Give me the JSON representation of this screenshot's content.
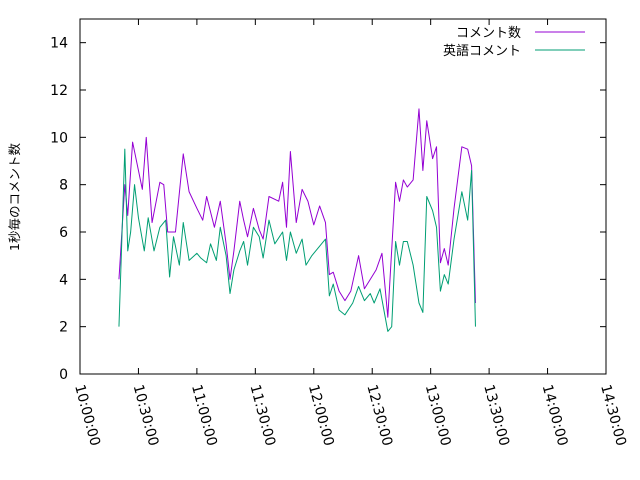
{
  "chart_data": {
    "type": "line",
    "title": "",
    "xlabel": "",
    "ylabel": "1秒毎のコメント数",
    "xlim": [
      "10:00:00",
      "14:30:00"
    ],
    "ylim": [
      0,
      15
    ],
    "x_ticks": [
      "10:00:00",
      "10:30:00",
      "11:00:00",
      "11:30:00",
      "12:00:00",
      "12:30:00",
      "13:00:00",
      "13:30:00",
      "14:00:00",
      "14:30:00"
    ],
    "y_ticks": [
      "0",
      "2",
      "4",
      "6",
      "8",
      "10",
      "12",
      "14"
    ],
    "grid": false,
    "legend_position": "top-right",
    "series": [
      {
        "name": "コメント数",
        "color": "#9400d3",
        "points": [
          [
            "10:20:00",
            4.0
          ],
          [
            "10:23:00",
            8.0
          ],
          [
            "10:24:30",
            6.7
          ],
          [
            "10:27:00",
            9.8
          ],
          [
            "10:32:00",
            7.8
          ],
          [
            "10:34:00",
            10.0
          ],
          [
            "10:37:00",
            6.4
          ],
          [
            "10:41:00",
            8.1
          ],
          [
            "10:43:00",
            8.0
          ],
          [
            "10:45:00",
            6.0
          ],
          [
            "10:47:00",
            6.0
          ],
          [
            "10:49:00",
            6.0
          ],
          [
            "10:53:00",
            9.3
          ],
          [
            "10:56:00",
            7.7
          ],
          [
            "11:00:00",
            7.0
          ],
          [
            "11:03:00",
            6.5
          ],
          [
            "11:05:00",
            7.5
          ],
          [
            "11:09:00",
            6.2
          ],
          [
            "11:12:00",
            7.3
          ],
          [
            "11:15:00",
            5.5
          ],
          [
            "11:17:00",
            4.0
          ],
          [
            "11:19:00",
            5.2
          ],
          [
            "11:22:00",
            7.3
          ],
          [
            "11:24:00",
            6.5
          ],
          [
            "11:26:00",
            5.8
          ],
          [
            "11:29:00",
            7.0
          ],
          [
            "11:32:00",
            6.1
          ],
          [
            "11:34:00",
            5.7
          ],
          [
            "11:37:00",
            7.5
          ],
          [
            "11:42:00",
            7.3
          ],
          [
            "11:44:00",
            8.1
          ],
          [
            "11:46:00",
            6.2
          ],
          [
            "11:48:00",
            9.4
          ],
          [
            "11:51:00",
            6.4
          ],
          [
            "11:54:00",
            7.8
          ],
          [
            "11:57:00",
            7.3
          ],
          [
            "12:00:00",
            6.3
          ],
          [
            "12:03:00",
            7.1
          ],
          [
            "12:06:00",
            6.4
          ],
          [
            "12:08:00",
            4.2
          ],
          [
            "12:10:00",
            4.3
          ],
          [
            "12:13:00",
            3.5
          ],
          [
            "12:16:00",
            3.1
          ],
          [
            "12:19:00",
            3.5
          ],
          [
            "12:23:00",
            5.0
          ],
          [
            "12:26:00",
            3.6
          ],
          [
            "12:29:00",
            4.0
          ],
          [
            "12:32:00",
            4.4
          ],
          [
            "12:35:00",
            5.1
          ],
          [
            "12:38:00",
            2.4
          ],
          [
            "12:42:00",
            8.1
          ],
          [
            "12:44:00",
            7.3
          ],
          [
            "12:46:00",
            8.2
          ],
          [
            "12:48:00",
            7.9
          ],
          [
            "12:51:00",
            8.2
          ],
          [
            "12:54:00",
            11.2
          ],
          [
            "12:56:00",
            8.6
          ],
          [
            "12:58:00",
            10.7
          ],
          [
            "13:01:00",
            9.1
          ],
          [
            "13:03:00",
            9.6
          ],
          [
            "13:05:00",
            4.7
          ],
          [
            "13:07:00",
            5.3
          ],
          [
            "13:09:00",
            4.6
          ],
          [
            "13:12:00",
            7.0
          ],
          [
            "13:16:00",
            9.6
          ],
          [
            "13:19:00",
            9.5
          ],
          [
            "13:21:00",
            8.8
          ],
          [
            "13:23:00",
            3.0
          ]
        ]
      },
      {
        "name": "英語コメント",
        "color": "#009e73",
        "points": [
          [
            "10:20:00",
            2.0
          ],
          [
            "10:23:00",
            9.5
          ],
          [
            "10:24:30",
            5.2
          ],
          [
            "10:26:00",
            6.0
          ],
          [
            "10:28:00",
            8.0
          ],
          [
            "10:30:00",
            6.6
          ],
          [
            "10:33:00",
            5.2
          ],
          [
            "10:35:00",
            6.6
          ],
          [
            "10:38:00",
            5.2
          ],
          [
            "10:41:00",
            6.2
          ],
          [
            "10:44:00",
            6.5
          ],
          [
            "10:46:00",
            4.1
          ],
          [
            "10:48:00",
            5.8
          ],
          [
            "10:51:00",
            4.6
          ],
          [
            "10:53:00",
            6.4
          ],
          [
            "10:56:00",
            4.8
          ],
          [
            "11:00:00",
            5.1
          ],
          [
            "11:02:00",
            4.9
          ],
          [
            "11:05:00",
            4.7
          ],
          [
            "11:07:00",
            5.5
          ],
          [
            "11:10:00",
            4.8
          ],
          [
            "11:12:00",
            6.2
          ],
          [
            "11:15:00",
            5.0
          ],
          [
            "11:17:00",
            3.4
          ],
          [
            "11:19:00",
            4.4
          ],
          [
            "11:22:00",
            5.2
          ],
          [
            "11:24:00",
            5.6
          ],
          [
            "11:26:00",
            4.6
          ],
          [
            "11:29:00",
            6.2
          ],
          [
            "11:32:00",
            5.8
          ],
          [
            "11:34:00",
            4.9
          ],
          [
            "11:37:00",
            6.5
          ],
          [
            "11:40:00",
            5.5
          ],
          [
            "11:44:00",
            6.0
          ],
          [
            "11:46:00",
            4.8
          ],
          [
            "11:48:00",
            6.0
          ],
          [
            "11:51:00",
            5.1
          ],
          [
            "11:54:00",
            5.7
          ],
          [
            "11:56:00",
            4.6
          ],
          [
            "11:59:00",
            5.0
          ],
          [
            "12:03:00",
            5.4
          ],
          [
            "12:06:00",
            5.7
          ],
          [
            "12:08:00",
            3.3
          ],
          [
            "12:10:00",
            3.8
          ],
          [
            "12:13:00",
            2.7
          ],
          [
            "12:16:00",
            2.5
          ],
          [
            "12:20:00",
            3.0
          ],
          [
            "12:23:00",
            3.7
          ],
          [
            "12:26:00",
            3.1
          ],
          [
            "12:29:00",
            3.4
          ],
          [
            "12:31:00",
            3.0
          ],
          [
            "12:34:00",
            3.6
          ],
          [
            "12:38:00",
            1.8
          ],
          [
            "12:40:00",
            2.0
          ],
          [
            "12:42:00",
            5.6
          ],
          [
            "12:44:00",
            4.6
          ],
          [
            "12:46:00",
            5.6
          ],
          [
            "12:48:00",
            5.6
          ],
          [
            "12:51:00",
            4.6
          ],
          [
            "12:54:00",
            3.0
          ],
          [
            "12:56:00",
            2.6
          ],
          [
            "12:58:00",
            7.5
          ],
          [
            "13:01:00",
            6.9
          ],
          [
            "13:03:00",
            6.2
          ],
          [
            "13:05:00",
            3.5
          ],
          [
            "13:07:00",
            4.2
          ],
          [
            "13:09:00",
            3.8
          ],
          [
            "13:12:00",
            5.7
          ],
          [
            "13:16:00",
            7.7
          ],
          [
            "13:19:00",
            6.5
          ],
          [
            "13:21:00",
            8.6
          ],
          [
            "13:23:00",
            2.0
          ]
        ]
      }
    ]
  }
}
